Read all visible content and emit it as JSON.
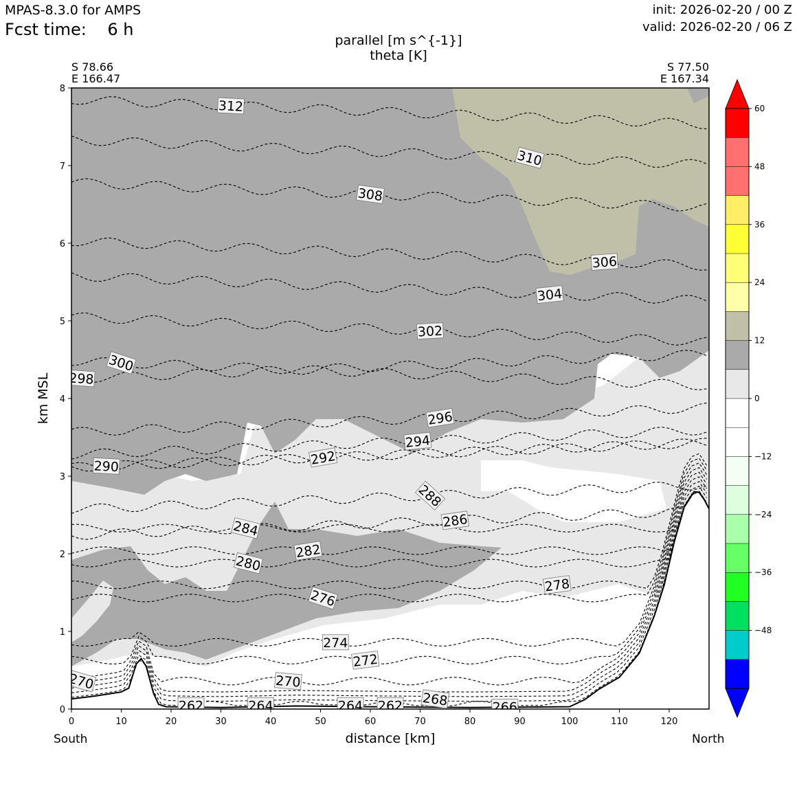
{
  "header": {
    "model": "MPAS-8.3.0 for AMPS",
    "fcst_label": "Fcst time:",
    "fcst_value": "6 h",
    "init": "init: 2026-02-20 / 00 Z",
    "valid": "valid: 2026-02-20 / 06 Z"
  },
  "chart_data": {
    "type": "contour",
    "title": "parallel [m s^{-1}]",
    "subtitle": "theta [K]",
    "xlabel": "distance [km]",
    "ylabel": "km MSL",
    "xlim": [
      0,
      128
    ],
    "ylim": [
      0,
      8
    ],
    "x_ticks": [
      "0",
      "10",
      "20",
      "30",
      "40",
      "50",
      "60",
      "70",
      "80",
      "90",
      "100",
      "110",
      "120"
    ],
    "y_ticks": [
      "0",
      "1",
      "2",
      "3",
      "4",
      "5",
      "6",
      "7",
      "8"
    ],
    "start_point": {
      "lat": "S 78.66",
      "lon": "E 166.47",
      "end_label": "South"
    },
    "end_point": {
      "lat": "S 77.50",
      "lon": "E 167.34",
      "end_label": "North"
    },
    "colorbar": {
      "levels": [
        -60,
        -54,
        -48,
        -42,
        -36,
        -30,
        -24,
        -18,
        -12,
        -6,
        0,
        6,
        12,
        18,
        24,
        30,
        36,
        42,
        48,
        54,
        60
      ],
      "tick_labels": [
        "60",
        "48",
        "36",
        "24",
        "12",
        "0",
        "−12",
        "−24",
        "−36",
        "−48"
      ],
      "colors": [
        "#0000ff",
        "#00cccc",
        "#00e060",
        "#22ff22",
        "#66ff66",
        "#aaffaa",
        "#ddffdd",
        "#f3fff3",
        "#ffffff",
        "#ffffff",
        "#e8e8e8",
        "#aaaaaa",
        "#c0c0a8",
        "#ffffaa",
        "#ffff77",
        "#ffff33",
        "#ffee66",
        "#ff7070",
        "#ff0000"
      ],
      "extend": "both"
    },
    "theta_labels": [
      {
        "value": "312",
        "x": 32,
        "z": 7.77,
        "rot": 3
      },
      {
        "value": "310",
        "x": 92,
        "z": 7.1,
        "rot": 15
      },
      {
        "value": "308",
        "x": 60,
        "z": 6.63,
        "rot": 8
      },
      {
        "value": "306",
        "x": 107,
        "z": 5.76,
        "rot": -4
      },
      {
        "value": "304",
        "x": 96,
        "z": 5.34,
        "rot": -6
      },
      {
        "value": "302",
        "x": 72,
        "z": 4.87,
        "rot": -3
      },
      {
        "value": "300",
        "x": 10,
        "z": 4.46,
        "rot": 18
      },
      {
        "value": "298",
        "x": 2,
        "z": 4.26,
        "rot": 4
      },
      {
        "value": "296",
        "x": 74,
        "z": 3.75,
        "rot": -9
      },
      {
        "value": "294",
        "x": 69.5,
        "z": 3.45,
        "rot": -6
      },
      {
        "value": "292",
        "x": 50.5,
        "z": 3.24,
        "rot": -10
      },
      {
        "value": "290",
        "x": 7,
        "z": 3.13,
        "rot": 3
      },
      {
        "value": "288",
        "x": 72,
        "z": 2.75,
        "rot": 42
      },
      {
        "value": "286",
        "x": 77,
        "z": 2.43,
        "rot": -8
      },
      {
        "value": "284",
        "x": 35,
        "z": 2.33,
        "rot": 14
      },
      {
        "value": "282",
        "x": 47.5,
        "z": 2.04,
        "rot": -9
      },
      {
        "value": "280",
        "x": 35.5,
        "z": 1.88,
        "rot": 14
      },
      {
        "value": "278",
        "x": 97.5,
        "z": 1.6,
        "rot": -8
      },
      {
        "value": "276",
        "x": 50.5,
        "z": 1.43,
        "rot": 18
      },
      {
        "value": "274",
        "x": 53,
        "z": 0.86,
        "rot": 0
      },
      {
        "value": "272",
        "x": 59,
        "z": 0.63,
        "rot": -7
      },
      {
        "value": "270",
        "x": 43.5,
        "z": 0.36,
        "rot": 5
      },
      {
        "value": "270",
        "x": 2,
        "z": 0.36,
        "rot": 16
      },
      {
        "value": "268",
        "x": 73,
        "z": 0.13,
        "rot": 8
      },
      {
        "value": "266",
        "x": 87,
        "z": 0.03,
        "rot": 0
      },
      {
        "value": "264",
        "x": 38,
        "z": 0.05,
        "rot": 0
      },
      {
        "value": "264",
        "x": 56,
        "z": 0.05,
        "rot": 0
      },
      {
        "value": "262",
        "x": 24,
        "z": 0.05,
        "rot": 0
      },
      {
        "value": "262",
        "x": 64,
        "z": 0.05,
        "rot": 0
      }
    ],
    "terrain_profile": [
      [
        0,
        0.13
      ],
      [
        5,
        0.17
      ],
      [
        10,
        0.22
      ],
      [
        11.5,
        0.27
      ],
      [
        13,
        0.58
      ],
      [
        14,
        0.65
      ],
      [
        15,
        0.55
      ],
      [
        16.5,
        0.2
      ],
      [
        17.5,
        0.06
      ],
      [
        19,
        0.03
      ],
      [
        30,
        0.02
      ],
      [
        45,
        0.04
      ],
      [
        60,
        0.03
      ],
      [
        80,
        0.02
      ],
      [
        100,
        0.03
      ],
      [
        103,
        0.12
      ],
      [
        106,
        0.26
      ],
      [
        110,
        0.41
      ],
      [
        114,
        0.72
      ],
      [
        117,
        1.2
      ],
      [
        119,
        1.6
      ],
      [
        121,
        2.15
      ],
      [
        123,
        2.6
      ],
      [
        125,
        2.8
      ],
      [
        126,
        2.79
      ],
      [
        127,
        2.7
      ],
      [
        128,
        2.58
      ]
    ]
  }
}
